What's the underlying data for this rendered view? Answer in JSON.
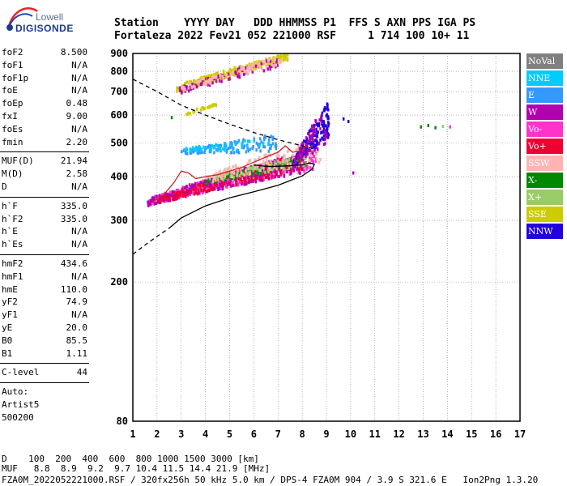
{
  "logo": {
    "line1": "Lowell",
    "line2": "DIGISONDE"
  },
  "header": {
    "row1": "Station    YYYY DAY   DDD HHMMSS P1  FFS S AXN PPS IGA PS",
    "row2": "Fortaleza 2022 Fev21 052 221000 RSF     1 714 100 10+ 11"
  },
  "params": {
    "group1": [
      {
        "label": "foF2",
        "value": "8.500"
      },
      {
        "label": "foF1",
        "value": "N/A"
      },
      {
        "label": "foF1p",
        "value": "N/A"
      },
      {
        "label": "foE",
        "value": "N/A"
      },
      {
        "label": "foEp",
        "value": "0.48"
      },
      {
        "label": "fxI",
        "value": "9.00"
      },
      {
        "label": "foEs",
        "value": "N/A"
      },
      {
        "label": "fmin",
        "value": "2.20"
      }
    ],
    "group2": [
      {
        "label": "MUF(D)",
        "value": "21.94"
      },
      {
        "label": "M(D)",
        "value": "2.58"
      },
      {
        "label": "D",
        "value": "N/A"
      }
    ],
    "group3": [
      {
        "label": "h`F",
        "value": "335.0"
      },
      {
        "label": "h`F2",
        "value": "335.0"
      },
      {
        "label": "h`E",
        "value": "N/A"
      },
      {
        "label": "h`Es",
        "value": "N/A"
      }
    ],
    "group4": [
      {
        "label": "hmF2",
        "value": "434.6"
      },
      {
        "label": "hmF1",
        "value": "N/A"
      },
      {
        "label": "hmE",
        "value": "110.0"
      },
      {
        "label": "yF2",
        "value": "74.9"
      },
      {
        "label": "yF1",
        "value": "N/A"
      },
      {
        "label": "yE",
        "value": "20.0"
      },
      {
        "label": "B0",
        "value": "85.5"
      },
      {
        "label": "B1",
        "value": "1.11"
      }
    ],
    "clevel": {
      "label": "C-level",
      "value": "44"
    },
    "auto_label": "Auto:",
    "auto_line2": "Artist5",
    "auto_line3": "500200"
  },
  "legend": [
    {
      "label": "NoVal",
      "color": "#808080"
    },
    {
      "label": "NNE",
      "color": "#00ccff"
    },
    {
      "label": "E",
      "color": "#3399ff"
    },
    {
      "label": "W",
      "color": "#b000b0"
    },
    {
      "label": "Vo-",
      "color": "#ff33cc"
    },
    {
      "label": "Vo+",
      "color": "#ee0033"
    },
    {
      "label": "SSW",
      "color": "#ffb3b3"
    },
    {
      "label": "X-",
      "color": "#008800"
    },
    {
      "label": "X+",
      "color": "#99cc66"
    },
    {
      "label": "SSE",
      "color": "#cccc00"
    },
    {
      "label": "NNW",
      "color": "#2200dd"
    }
  ],
  "footer": {
    "line1": "D    100  200  400  600  800 1000 1500 3000 [km]",
    "line2": "MUF   8.8  8.9  9.2  9.7 10.4 11.5 14.4 21.9 [MHz]",
    "line3": "FZA0M_2022052221000.RSF / 320fx256h 50 kHz 5.0 km / DPS-4 FZA0M 904 / 3.9 S 321.6 E   Ion2Png 1.3.20"
  },
  "chart_data": {
    "type": "scatter",
    "title": "",
    "xlabel": "",
    "ylabel": "",
    "xlim": [
      1,
      17
    ],
    "ylim_log": [
      80,
      900
    ],
    "y_scale": "log",
    "x_ticks": [
      1,
      2,
      3,
      4,
      5,
      6,
      7,
      8,
      9,
      10,
      11,
      12,
      13,
      14,
      15,
      16,
      17
    ],
    "y_ticks": [
      80,
      200,
      300,
      400,
      500,
      600,
      700,
      800,
      900
    ],
    "grid": true,
    "clusters": [
      {
        "name": "O-trace main",
        "color": "#ff33cc",
        "x_range": [
          1.6,
          8.6
        ],
        "y_start": [
          330,
          345
        ],
        "y_end": [
          420,
          480
        ],
        "n": 520
      },
      {
        "name": "O-trace secondary",
        "color": "#b000b0",
        "x_range": [
          1.6,
          8.0
        ],
        "y_start": [
          330,
          345
        ],
        "y_end": [
          410,
          470
        ],
        "n": 240
      },
      {
        "name": "O-trace red",
        "color": "#ee0033",
        "x_range": [
          2.0,
          8.2
        ],
        "y_start": [
          335,
          345
        ],
        "y_end": [
          420,
          470
        ],
        "n": 160
      },
      {
        "name": "mixed green",
        "color": "#008800",
        "x_range": [
          4.0,
          8.2
        ],
        "y_start": [
          380,
          400
        ],
        "y_end": [
          430,
          460
        ],
        "n": 90
      },
      {
        "name": "mixed light green",
        "color": "#99cc66",
        "x_range": [
          4.5,
          8.2
        ],
        "y_start": [
          390,
          410
        ],
        "y_end": [
          430,
          460
        ],
        "n": 80
      },
      {
        "name": "mixed salmon",
        "color": "#ffb3b3",
        "x_range": [
          4.0,
          8.8
        ],
        "y_start": [
          385,
          400
        ],
        "y_end": [
          440,
          520
        ],
        "n": 120
      },
      {
        "name": "vertical spread NNW",
        "color": "#2200dd",
        "x_range": [
          7.6,
          9.1
        ],
        "y_start": [
          420,
          440
        ],
        "y_end": [
          520,
          660
        ],
        "n": 160
      },
      {
        "name": "vertical spread magenta",
        "color": "#b000b0",
        "x_range": [
          7.6,
          9.0
        ],
        "y_start": [
          420,
          440
        ],
        "y_end": [
          500,
          650
        ],
        "n": 70
      },
      {
        "name": "E echoes mid",
        "color": "#3399ff",
        "x_range": [
          3.0,
          7.0
        ],
        "y_start": [
          465,
          475
        ],
        "y_end": [
          470,
          530
        ],
        "n": 130
      },
      {
        "name": "NNE echoes",
        "color": "#00ccff",
        "x_range": [
          3.0,
          6.8
        ],
        "y_start": [
          470,
          480
        ],
        "y_end": [
          480,
          520
        ],
        "n": 50
      },
      {
        "name": "multihop yellow",
        "color": "#cccc00",
        "x_range": [
          2.8,
          7.4
        ],
        "y_start": [
          690,
          730
        ],
        "y_end": [
          860,
          900
        ],
        "n": 260
      },
      {
        "name": "multihop purple",
        "color": "#b000b0",
        "x_range": [
          2.9,
          7.0
        ],
        "y_start": [
          690,
          720
        ],
        "y_end": [
          820,
          880
        ],
        "n": 90
      },
      {
        "name": "multihop salmon",
        "color": "#ffb3b3",
        "x_range": [
          3.0,
          7.2
        ],
        "y_start": [
          700,
          730
        ],
        "y_end": [
          840,
          890
        ],
        "n": 90
      },
      {
        "name": "low yellow patch",
        "color": "#cccc00",
        "x_range": [
          3.2,
          4.5
        ],
        "y_start": [
          600,
          610
        ],
        "y_end": [
          640,
          650
        ],
        "n": 25
      }
    ],
    "isolated_points": [
      {
        "x": 9.7,
        "y": 585,
        "color": "#2200dd"
      },
      {
        "x": 9.9,
        "y": 575,
        "color": "#2200dd"
      },
      {
        "x": 10.1,
        "y": 410,
        "color": "#b000b0"
      },
      {
        "x": 12.9,
        "y": 555,
        "color": "#008800"
      },
      {
        "x": 13.2,
        "y": 560,
        "color": "#008800"
      },
      {
        "x": 13.5,
        "y": 552,
        "color": "#008800"
      },
      {
        "x": 13.8,
        "y": 557,
        "color": "#99cc66"
      },
      {
        "x": 14.1,
        "y": 555,
        "color": "#ff33cc"
      },
      {
        "x": 2.6,
        "y": 590,
        "color": "#008800"
      }
    ],
    "lines": [
      {
        "name": "MUF dashed",
        "style": "dashed",
        "color": "#000000",
        "points": [
          [
            1.0,
            760
          ],
          [
            2.0,
            700
          ],
          [
            3.0,
            640
          ],
          [
            4.0,
            600
          ],
          [
            5.0,
            565
          ],
          [
            6.0,
            535
          ],
          [
            7.0,
            510
          ],
          [
            8.0,
            490
          ],
          [
            8.5,
            480
          ]
        ]
      },
      {
        "name": "lower dashed",
        "style": "dashed",
        "color": "#000000",
        "points": [
          [
            1.0,
            240
          ],
          [
            1.5,
            255
          ],
          [
            2.0,
            270
          ],
          [
            2.5,
            285
          ]
        ]
      },
      {
        "name": "profile solid",
        "style": "solid",
        "color": "#000000",
        "points": [
          [
            2.5,
            285
          ],
          [
            3.0,
            305
          ],
          [
            4.0,
            330
          ],
          [
            5.0,
            348
          ],
          [
            6.0,
            362
          ],
          [
            7.0,
            378
          ],
          [
            7.5,
            390
          ],
          [
            8.0,
            402
          ],
          [
            8.4,
            420
          ],
          [
            8.5,
            434
          ],
          [
            8.3,
            438
          ],
          [
            8.0,
            432
          ],
          [
            7.5,
            430
          ],
          [
            7.0,
            428
          ],
          [
            6.5,
            428
          ],
          [
            6.0,
            432
          ]
        ]
      },
      {
        "name": "trace outline",
        "style": "solid",
        "color": "#cc2222",
        "points": [
          [
            1.8,
            340
          ],
          [
            2.2,
            350
          ],
          [
            2.7,
            385
          ],
          [
            3.0,
            415
          ],
          [
            3.3,
            410
          ],
          [
            3.6,
            395
          ],
          [
            4.0,
            400
          ],
          [
            4.5,
            405
          ],
          [
            5.0,
            415
          ],
          [
            5.5,
            425
          ],
          [
            6.0,
            440
          ],
          [
            6.5,
            455
          ],
          [
            7.0,
            470
          ],
          [
            7.3,
            490
          ],
          [
            7.6,
            470
          ],
          [
            8.0,
            475
          ],
          [
            8.2,
            495
          ]
        ]
      }
    ]
  }
}
